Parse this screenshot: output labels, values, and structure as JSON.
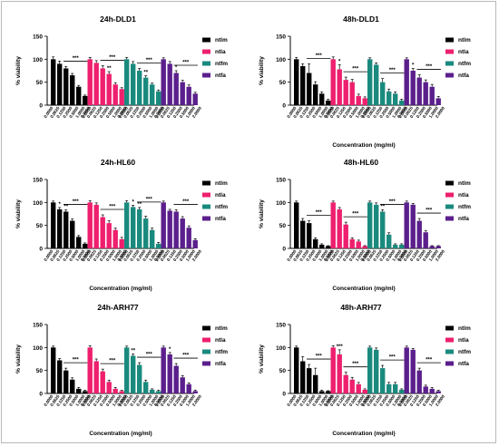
{
  "colors": {
    "ntlm": "#000000",
    "ntla": "#ee1f6e",
    "ntfm": "#1a8a7e",
    "ntfa": "#5b1f8c"
  },
  "legend_labels": [
    "ntlm",
    "ntla",
    "ntfm",
    "ntfa"
  ],
  "concentration_labels": [
    "0.0000",
    "0.0625",
    "0.1250",
    "0.2500",
    "0.5000",
    "1.0000",
    "2.0000"
  ],
  "chart_data": [
    {
      "type": "bar",
      "title": "24h-DLD1",
      "ylabel": "% viability",
      "xlabel": "",
      "ylim": [
        0,
        150
      ],
      "yticks": [
        0,
        50,
        100,
        150
      ],
      "categories": [
        "0.0000",
        "0.0625",
        "0.1250",
        "0.2500",
        "0.5000",
        "1.0000",
        "2.0000"
      ],
      "legend_position": "right",
      "series": [
        {
          "name": "ntlm",
          "values": [
            100,
            90,
            80,
            65,
            40,
            20,
            null
          ],
          "errors": [
            5,
            6,
            4,
            4,
            3,
            2,
            null
          ]
        },
        {
          "name": "ntla",
          "values": [
            100,
            92,
            80,
            68,
            45,
            35,
            null
          ],
          "errors": [
            4,
            5,
            6,
            5,
            4,
            3,
            null
          ]
        },
        {
          "name": "ntfm",
          "values": [
            100,
            90,
            75,
            60,
            45,
            30,
            null
          ],
          "errors": [
            4,
            5,
            5,
            4,
            3,
            3,
            null
          ]
        },
        {
          "name": "ntfa",
          "values": [
            100,
            90,
            70,
            50,
            40,
            25,
            null
          ],
          "errors": [
            3,
            5,
            5,
            4,
            4,
            3,
            null
          ]
        }
      ],
      "annotations": [
        {
          "series": 0,
          "label": "***",
          "type": "line"
        },
        {
          "series": 1,
          "label": "**",
          "type": "star",
          "idx": 3
        },
        {
          "series": 1,
          "label": "***",
          "type": "line"
        },
        {
          "series": 2,
          "label": "**",
          "type": "star",
          "idx": 3
        },
        {
          "series": 2,
          "label": "***",
          "type": "line"
        },
        {
          "series": 3,
          "label": "*",
          "type": "star",
          "idx": 2
        },
        {
          "series": 3,
          "label": "***",
          "type": "line"
        }
      ]
    },
    {
      "type": "bar",
      "title": "48h-DLD1",
      "ylabel": "% viability",
      "xlabel": "Concentration (mg/ml)",
      "ylim": [
        0,
        150
      ],
      "yticks": [
        0,
        50,
        100,
        150
      ],
      "categories": [
        "0.0000",
        "0.0625",
        "0.1250",
        "0.2500",
        "0.5000",
        "1.0000",
        "2.0000"
      ],
      "legend_position": "right",
      "series": [
        {
          "name": "ntlm",
          "values": [
            100,
            85,
            70,
            45,
            25,
            10,
            null
          ],
          "errors": [
            4,
            5,
            20,
            6,
            4,
            3,
            null
          ]
        },
        {
          "name": "ntla",
          "values": [
            100,
            78,
            55,
            50,
            20,
            15,
            null
          ],
          "errors": [
            5,
            10,
            6,
            6,
            4,
            3,
            null
          ]
        },
        {
          "name": "ntfm",
          "values": [
            100,
            88,
            50,
            30,
            25,
            10,
            null
          ],
          "errors": [
            3,
            4,
            8,
            5,
            4,
            3,
            null
          ]
        },
        {
          "name": "ntfa",
          "values": [
            100,
            75,
            60,
            50,
            40,
            15,
            null
          ],
          "errors": [
            3,
            5,
            6,
            5,
            5,
            4,
            null
          ]
        }
      ],
      "annotations": [
        {
          "series": 0,
          "label": "***",
          "type": "line"
        },
        {
          "series": 1,
          "label": "*",
          "type": "star",
          "idx": 1
        },
        {
          "series": 1,
          "label": "***",
          "type": "line"
        },
        {
          "series": 2,
          "label": "***",
          "type": "line"
        },
        {
          "series": 3,
          "label": "*",
          "type": "star",
          "idx": 1
        },
        {
          "series": 3,
          "label": "***",
          "type": "line"
        }
      ]
    },
    {
      "type": "bar",
      "title": "24h-HL60",
      "ylabel": "% viability",
      "xlabel": "Concentration (mg/ml)",
      "ylim": [
        0,
        150
      ],
      "yticks": [
        0,
        50,
        100,
        150
      ],
      "categories": [
        "0.0000",
        "0.0625",
        "0.1250",
        "0.2500",
        "0.5000",
        "1.0000",
        "2.0000"
      ],
      "legend_position": "right",
      "series": [
        {
          "name": "ntlm",
          "values": [
            100,
            85,
            80,
            60,
            25,
            10,
            null
          ],
          "errors": [
            3,
            4,
            4,
            4,
            3,
            2,
            null
          ]
        },
        {
          "name": "ntla",
          "values": [
            100,
            95,
            68,
            55,
            40,
            20,
            null
          ],
          "errors": [
            4,
            4,
            5,
            5,
            4,
            4,
            null
          ]
        },
        {
          "name": "ntfm",
          "values": [
            100,
            90,
            85,
            65,
            40,
            10,
            null
          ],
          "errors": [
            4,
            4,
            4,
            5,
            4,
            3,
            null
          ]
        },
        {
          "name": "ntfa",
          "values": [
            100,
            82,
            80,
            65,
            45,
            18,
            null
          ],
          "errors": [
            3,
            3,
            4,
            4,
            4,
            3,
            null
          ]
        }
      ],
      "annotations": [
        {
          "series": 0,
          "label": "*",
          "type": "star",
          "idx": 1
        },
        {
          "series": 0,
          "label": "**",
          "type": "star",
          "idx": 2
        },
        {
          "series": 0,
          "label": "***",
          "type": "line"
        },
        {
          "series": 1,
          "label": "***",
          "type": "line"
        },
        {
          "series": 2,
          "label": "*",
          "type": "star",
          "idx": 1
        },
        {
          "series": 2,
          "label": "**",
          "type": "star",
          "idx": 2
        },
        {
          "series": 2,
          "label": "***",
          "type": "line"
        },
        {
          "series": 3,
          "label": "***",
          "type": "line"
        }
      ]
    },
    {
      "type": "bar",
      "title": "48h-HL60",
      "ylabel": "% viability",
      "xlabel": "Concentration (mg/ml)",
      "ylim": [
        0,
        150
      ],
      "yticks": [
        0,
        50,
        100,
        150
      ],
      "categories": [
        "0.0000",
        "0.0625",
        "0.1250",
        "0.2500",
        "0.5000",
        "1.0000",
        "2.0000"
      ],
      "legend_position": "right",
      "series": [
        {
          "name": "ntlm",
          "values": [
            100,
            60,
            55,
            20,
            8,
            5,
            null
          ],
          "errors": [
            3,
            5,
            5,
            3,
            2,
            1,
            null
          ]
        },
        {
          "name": "ntla",
          "values": [
            100,
            85,
            52,
            20,
            15,
            5,
            null
          ],
          "errors": [
            3,
            4,
            5,
            3,
            3,
            1,
            null
          ]
        },
        {
          "name": "ntfm",
          "values": [
            100,
            95,
            80,
            30,
            8,
            8,
            null
          ],
          "errors": [
            3,
            4,
            4,
            4,
            2,
            2,
            null
          ]
        },
        {
          "name": "ntfa",
          "values": [
            100,
            95,
            60,
            35,
            5,
            5,
            null
          ],
          "errors": [
            3,
            3,
            5,
            4,
            1,
            1,
            null
          ]
        }
      ],
      "annotations": [
        {
          "series": 0,
          "label": "***",
          "type": "line"
        },
        {
          "series": 1,
          "label": "***",
          "type": "line"
        },
        {
          "series": 2,
          "label": "**",
          "type": "star",
          "idx": 2
        },
        {
          "series": 2,
          "label": "***",
          "type": "line"
        },
        {
          "series": 3,
          "label": "***",
          "type": "line"
        }
      ]
    },
    {
      "type": "bar",
      "title": "24h-ARH77",
      "ylabel": "% viability",
      "xlabel": "Concentration (mg/ml)",
      "ylim": [
        0,
        150
      ],
      "yticks": [
        0,
        50,
        100,
        150
      ],
      "categories": [
        "0.0000",
        "0.0625",
        "0.1250",
        "0.2500",
        "0.5000",
        "1.0000",
        "2.0000"
      ],
      "legend_position": "right",
      "series": [
        {
          "name": "ntlm",
          "values": [
            100,
            72,
            50,
            30,
            10,
            5,
            null
          ],
          "errors": [
            3,
            4,
            5,
            4,
            3,
            2,
            null
          ]
        },
        {
          "name": "ntla",
          "values": [
            100,
            70,
            48,
            25,
            10,
            5,
            null
          ],
          "errors": [
            4,
            5,
            5,
            4,
            3,
            2,
            null
          ]
        },
        {
          "name": "ntfm",
          "values": [
            100,
            82,
            62,
            25,
            8,
            5,
            null
          ],
          "errors": [
            3,
            4,
            5,
            4,
            2,
            2,
            null
          ]
        },
        {
          "name": "ntfa",
          "values": [
            100,
            85,
            60,
            35,
            20,
            5,
            null
          ],
          "errors": [
            3,
            4,
            5,
            4,
            3,
            2,
            null
          ]
        }
      ],
      "annotations": [
        {
          "series": 0,
          "label": "***",
          "type": "line"
        },
        {
          "series": 1,
          "label": "***",
          "type": "line"
        },
        {
          "series": 2,
          "label": "**",
          "type": "star",
          "idx": 1
        },
        {
          "series": 2,
          "label": "***",
          "type": "line"
        },
        {
          "series": 3,
          "label": "*",
          "type": "star",
          "idx": 1
        },
        {
          "series": 3,
          "label": "***",
          "type": "line"
        }
      ]
    },
    {
      "type": "bar",
      "title": "48h-ARH77",
      "ylabel": "% viability",
      "xlabel": "Concentration (mg/ml)",
      "ylim": [
        0,
        150
      ],
      "yticks": [
        0,
        50,
        100,
        150
      ],
      "categories": [
        "0.0000",
        "0.0625",
        "0.1250",
        "0.2500",
        "0.5000",
        "1.0000",
        "2.0000"
      ],
      "legend_position": "right",
      "series": [
        {
          "name": "ntlm",
          "values": [
            100,
            70,
            55,
            40,
            5,
            5,
            null
          ],
          "errors": [
            3,
            10,
            8,
            15,
            2,
            1,
            null
          ]
        },
        {
          "name": "ntla",
          "values": [
            100,
            85,
            40,
            30,
            20,
            8,
            null
          ],
          "errors": [
            4,
            10,
            6,
            5,
            4,
            2,
            null
          ]
        },
        {
          "name": "ntfm",
          "values": [
            100,
            95,
            55,
            20,
            20,
            8,
            null
          ],
          "errors": [
            3,
            4,
            6,
            4,
            4,
            2,
            null
          ]
        },
        {
          "name": "ntfa",
          "values": [
            100,
            95,
            50,
            15,
            10,
            5,
            null
          ],
          "errors": [
            3,
            3,
            5,
            3,
            3,
            2,
            null
          ]
        }
      ],
      "annotations": [
        {
          "series": 0,
          "label": "***",
          "type": "line"
        },
        {
          "series": 1,
          "label": "***",
          "type": "star",
          "idx": 1
        },
        {
          "series": 1,
          "label": "***",
          "type": "line"
        },
        {
          "series": 2,
          "label": "***",
          "type": "line"
        },
        {
          "series": 3,
          "label": "***",
          "type": "line"
        }
      ]
    }
  ]
}
